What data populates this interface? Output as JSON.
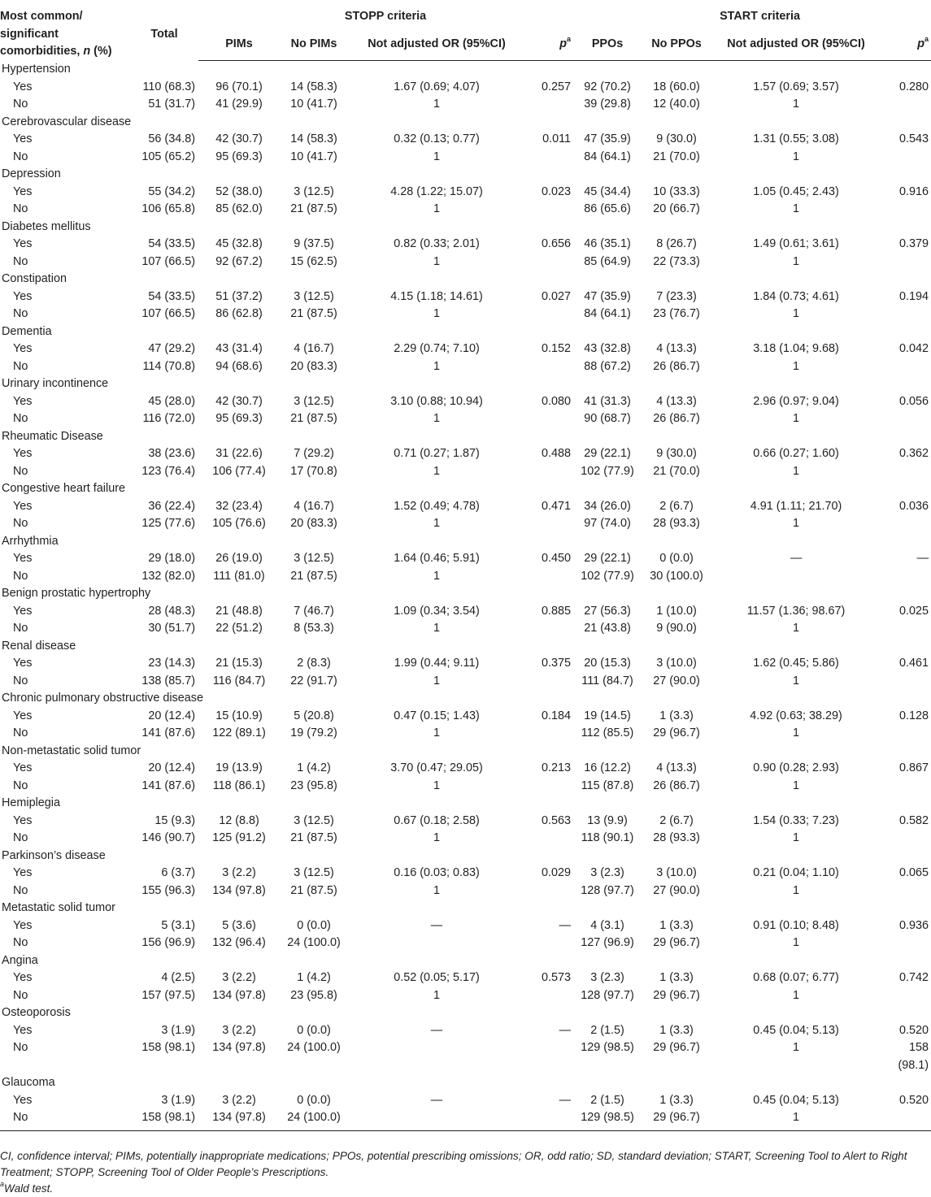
{
  "header": {
    "col0": "Most common/ significant comorbidities, n (%)",
    "col0_parts": [
      "Most common/",
      "significant",
      "comorbidities, "
    ],
    "col0_n": "n",
    "col0_tail": " (%)",
    "total": "Total",
    "stopp_group": "STOPP criteria",
    "start_group": "START criteria",
    "pims": "PIMs",
    "no_pims": "No PIMs",
    "or1": "Not adjusted OR (95%CI)",
    "p_label": "p",
    "p_sup": "a",
    "ppos": "PPOs",
    "no_ppos": "No PPOs",
    "or2": "Not adjusted OR (95%CI)"
  },
  "rows": [
    {
      "name": "Hypertension",
      "yes": [
        "110 (68.3)",
        "96 (70.1)",
        "14 (58.3)",
        "1.67 (0.69; 4.07)",
        "0.257",
        "92 (70.2)",
        "18 (60.0)",
        "1.57 (0.69; 3.57)",
        "0.280"
      ],
      "no": [
        "51 (31.7)",
        "41 (29.9)",
        "10 (41.7)",
        "1",
        "",
        "39 (29.8)",
        "12 (40.0)",
        "1",
        ""
      ]
    },
    {
      "name": "Cerebrovascular disease",
      "yes": [
        "56 (34.8)",
        "42 (30.7)",
        "14 (58.3)",
        "0.32 (0.13; 0.77)",
        "0.011",
        "47 (35.9)",
        "9 (30.0)",
        "1.31 (0.55; 3.08)",
        "0.543"
      ],
      "no": [
        "105 (65.2)",
        "95 (69.3)",
        "10 (41.7)",
        "1",
        "",
        "84 (64.1)",
        "21 (70.0)",
        "1",
        ""
      ]
    },
    {
      "name": "Depression",
      "yes": [
        "55 (34.2)",
        "52 (38.0)",
        "3 (12.5)",
        "4.28 (1.22; 15.07)",
        "0.023",
        "45 (34.4)",
        "10 (33.3)",
        "1.05 (0.45; 2.43)",
        "0.916"
      ],
      "no": [
        "106 (65.8)",
        "85 (62.0)",
        "21 (87.5)",
        "1",
        "",
        "86 (65.6)",
        "20 (66.7)",
        "1",
        ""
      ]
    },
    {
      "name": "Diabetes mellitus",
      "yes": [
        "54 (33.5)",
        "45 (32.8)",
        "9 (37.5)",
        "0.82 (0.33; 2.01)",
        "0.656",
        "46 (35.1)",
        "8 (26.7)",
        "1.49 (0.61; 3.61)",
        "0.379"
      ],
      "no": [
        "107 (66.5)",
        "92 (67.2)",
        "15 (62.5)",
        "1",
        "",
        "85 (64.9)",
        "22 (73.3)",
        "1",
        ""
      ]
    },
    {
      "name": "Constipation",
      "yes": [
        "54 (33.5)",
        "51 (37.2)",
        "3 (12.5)",
        "4.15 (1.18; 14.61)",
        "0.027",
        "47 (35.9)",
        "7 (23.3)",
        "1.84 (0.73; 4.61)",
        "0.194"
      ],
      "no": [
        "107 (66.5)",
        "86 (62.8)",
        "21 (87.5)",
        "1",
        "",
        "84 (64.1)",
        "23 (76.7)",
        "1",
        ""
      ]
    },
    {
      "name": "Dementia",
      "yes": [
        "47 (29.2)",
        "43 (31.4)",
        "4 (16.7)",
        "2.29 (0.74; 7.10)",
        "0.152",
        "43 (32.8)",
        "4 (13.3)",
        "3.18 (1.04; 9.68)",
        "0.042"
      ],
      "no": [
        "114 (70.8)",
        "94 (68.6)",
        "20 (83.3)",
        "1",
        "",
        "88 (67.2)",
        "26 (86.7)",
        "1",
        ""
      ]
    },
    {
      "name": "Urinary incontinence",
      "yes": [
        "45 (28.0)",
        "42 (30.7)",
        "3 (12.5)",
        "3.10 (0.88; 10.94)",
        "0.080",
        "41 (31.3)",
        "4 (13.3)",
        "2.96 (0.97; 9.04)",
        "0.056"
      ],
      "no": [
        "116 (72.0)",
        "95 (69.3)",
        "21 (87.5)",
        "1",
        "",
        "90 (68.7)",
        "26 (86.7)",
        "1",
        ""
      ]
    },
    {
      "name": "Rheumatic Disease",
      "yes": [
        "38 (23.6)",
        "31 (22.6)",
        "7 (29.2)",
        "0.71 (0.27; 1.87)",
        "0.488",
        "29 (22.1)",
        "9 (30.0)",
        "0.66 (0.27; 1.60)",
        "0.362"
      ],
      "no": [
        "123 (76.4)",
        "106 (77.4)",
        "17 (70.8)",
        "1",
        "",
        "102 (77.9)",
        "21 (70.0)",
        "1",
        ""
      ]
    },
    {
      "name": "Congestive heart failure",
      "yes": [
        "36 (22.4)",
        "32 (23.4)",
        "4 (16.7)",
        "1.52 (0.49; 4.78)",
        "0.471",
        "34 (26.0)",
        "2 (6.7)",
        "4.91 (1.11; 21.70)",
        "0.036"
      ],
      "no": [
        "125 (77.6)",
        "105 (76.6)",
        "20 (83.3)",
        "1",
        "",
        "97 (74.0)",
        "28 (93.3)",
        "1",
        ""
      ]
    },
    {
      "name": "Arrhythmia",
      "yes": [
        "29 (18.0)",
        "26 (19.0)",
        "3 (12.5)",
        "1.64 (0.46; 5.91)",
        "0.450",
        "29 (22.1)",
        "0 (0.0)",
        "—",
        "—"
      ],
      "no": [
        "132 (82.0)",
        "111 (81.0)",
        "21 (87.5)",
        "1",
        "",
        "102 (77.9)",
        "30 (100.0)",
        "",
        ""
      ]
    },
    {
      "name": "Benign prostatic hypertrophy",
      "yes": [
        "28 (48.3)",
        "21 (48.8)",
        "7 (46.7)",
        "1.09 (0.34; 3.54)",
        "0.885",
        "27 (56.3)",
        "1 (10.0)",
        "11.57 (1.36; 98.67)",
        "0.025"
      ],
      "no": [
        "30 (51.7)",
        "22 (51.2)",
        "8 (53.3)",
        "1",
        "",
        "21 (43.8)",
        "9 (90.0)",
        "1",
        ""
      ]
    },
    {
      "name": "Renal disease",
      "yes": [
        "23 (14.3)",
        "21 (15.3)",
        "2 (8.3)",
        "1.99 (0.44; 9.11)",
        "0.375",
        "20 (15.3)",
        "3 (10.0)",
        "1.62 (0.45; 5.86)",
        "0.461"
      ],
      "no": [
        "138 (85.7)",
        "116 (84.7)",
        "22 (91.7)",
        "1",
        "",
        "111 (84.7)",
        "27 (90.0)",
        "1",
        ""
      ]
    },
    {
      "name": "Chronic pulmonary obstructive disease",
      "yes": [
        "20 (12.4)",
        "15 (10.9)",
        "5 (20.8)",
        "0.47 (0.15; 1.43)",
        "0.184",
        "19 (14.5)",
        "1 (3.3)",
        "4.92 (0.63; 38.29)",
        "0.128"
      ],
      "no": [
        "141 (87.6)",
        "122 (89.1)",
        "19 (79.2)",
        "1",
        "",
        "112 (85.5)",
        "29 (96.7)",
        "1",
        ""
      ]
    },
    {
      "name": "Non-metastatic solid tumor",
      "yes": [
        "20 (12.4)",
        "19 (13.9)",
        "1 (4.2)",
        "3.70 (0.47; 29.05)",
        "0.213",
        "16 (12.2)",
        "4 (13.3)",
        "0.90 (0.28; 2.93)",
        "0.867"
      ],
      "no": [
        "141 (87.6)",
        "118 (86.1)",
        "23 (95.8)",
        "1",
        "",
        "115 (87.8)",
        "26 (86.7)",
        "1",
        ""
      ]
    },
    {
      "name": "Hemiplegia",
      "yes": [
        "15 (9.3)",
        "12 (8.8)",
        "3 (12.5)",
        "0.67 (0.18; 2.58)",
        "0.563",
        "13 (9.9)",
        "2 (6.7)",
        "1.54 (0.33; 7.23)",
        "0.582"
      ],
      "no": [
        "146 (90.7)",
        "125 (91.2)",
        "21 (87.5)",
        "1",
        "",
        "118 (90.1)",
        "28 (93.3)",
        "1",
        ""
      ]
    },
    {
      "name": "Parkinson’s disease",
      "yes": [
        "6 (3.7)",
        "3 (2.2)",
        "3 (12.5)",
        "0.16 (0.03; 0.83)",
        "0.029",
        "3 (2.3)",
        "3 (10.0)",
        "0.21 (0.04; 1.10)",
        "0.065"
      ],
      "no": [
        "155 (96.3)",
        "134 (97.8)",
        "21 (87.5)",
        "1",
        "",
        "128 (97.7)",
        "27 (90.0)",
        "1",
        ""
      ]
    },
    {
      "name": "Metastatic solid tumor",
      "yes": [
        "5 (3.1)",
        "5 (3.6)",
        "0 (0.0)",
        "—",
        "—",
        "4 (3.1)",
        "1 (3.3)",
        "0.91 (0.10; 8.48)",
        "0.936"
      ],
      "no": [
        "156 (96.9)",
        "132 (96.4)",
        "24 (100.0)",
        "",
        "",
        "127 (96.9)",
        "29 (96.7)",
        "1",
        ""
      ]
    },
    {
      "name": "Angina",
      "yes": [
        "4 (2.5)",
        "3 (2.2)",
        "1 (4.2)",
        "0.52 (0.05; 5.17)",
        "0.573",
        "3 (2.3)",
        "1 (3.3)",
        "0.68 (0.07; 6.77)",
        "0.742"
      ],
      "no": [
        "157 (97.5)",
        "134 (97.8)",
        "23 (95.8)",
        "1",
        "",
        "128 (97.7)",
        "29 (96.7)",
        "1",
        ""
      ]
    },
    {
      "name": "Osteoporosis",
      "yes": [
        "3 (1.9)",
        "3 (2.2)",
        "0 (0.0)",
        "—",
        "—",
        "2 (1.5)",
        "1 (3.3)",
        "0.45 (0.04; 5.13)",
        "0.520"
      ],
      "no": [
        "158 (98.1)",
        "134 (97.8)",
        "24 (100.0)",
        "",
        "",
        "129 (98.5)",
        "29 (96.7)",
        "1",
        "158 (98.1)"
      ]
    },
    {
      "name": "Glaucoma",
      "yes": [
        "3 (1.9)",
        "3 (2.2)",
        "0 (0.0)",
        "—",
        "—",
        "2 (1.5)",
        "1 (3.3)",
        "0.45 (0.04; 5.13)",
        "0.520"
      ],
      "no": [
        "158 (98.1)",
        "134 (97.8)",
        "24 (100.0)",
        "",
        "",
        "129 (98.5)",
        "29 (96.7)",
        "1",
        ""
      ]
    }
  ],
  "yes_label": "Yes",
  "no_label": "No",
  "footnote": {
    "abbrev": "CI, confidence interval; PIMs, potentially inappropriate medications; PPOs, potential prescribing omissions; OR, odd ratio; SD, standard deviation; START, Screening Tool to Alert to Right Treatment; STOPP, Screening Tool of Older People’s Prescriptions.",
    "sup": "a",
    "wald": "Wald test."
  }
}
